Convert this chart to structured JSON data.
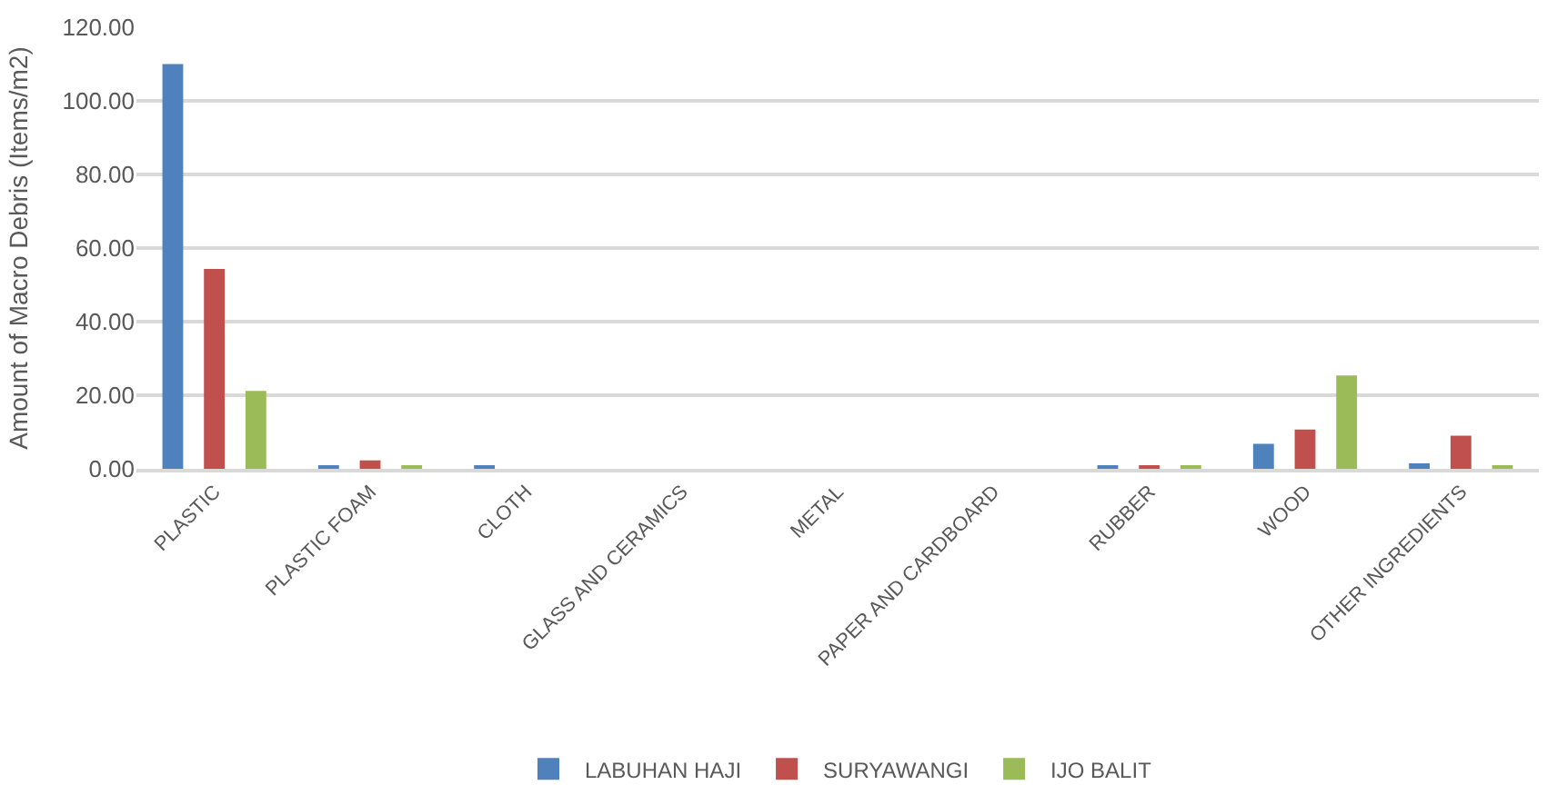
{
  "chart_data": {
    "type": "bar",
    "ylabel": "Amount of Macro Debris (Items/m2)",
    "categories": [
      "PLASTIC",
      "PLASTIC FOAM",
      "CLOTH",
      "GLASS AND CERAMICS",
      "METAL",
      "PAPER AND CARDBOARD",
      "RUBBER",
      "WOOD",
      "OTHER INGREDIENTS"
    ],
    "series": [
      {
        "name": "LABUHAN HAJI",
        "color": "#4f81bd",
        "values": [
          110,
          0.8,
          0.8,
          0,
          0,
          0,
          0.8,
          6.8,
          1.5
        ]
      },
      {
        "name": "SURYAWANGI",
        "color": "#c0504d",
        "values": [
          54.3,
          2.3,
          0,
          0,
          0,
          0,
          0.8,
          10.7,
          9.0
        ]
      },
      {
        "name": "IJO BALIT",
        "color": "#9bbb59",
        "values": [
          21.2,
          0.8,
          0,
          0,
          0,
          0,
          0.8,
          25.4,
          0.8
        ]
      }
    ],
    "ylim": [
      0,
      120
    ],
    "yticks": [
      {
        "value": 0,
        "label": "0.00"
      },
      {
        "value": 20,
        "label": "20.00"
      },
      {
        "value": 40,
        "label": "40.00"
      },
      {
        "value": 60,
        "label": "60.00"
      },
      {
        "value": 80,
        "label": "80.00"
      },
      {
        "value": 100,
        "label": "100.00"
      },
      {
        "value": 120,
        "label": "120.00"
      }
    ],
    "grid": "y",
    "legend": "bottom"
  }
}
